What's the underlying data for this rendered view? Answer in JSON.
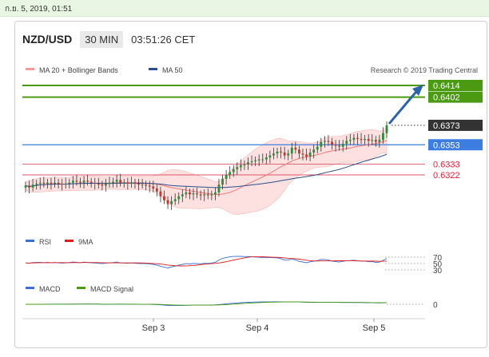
{
  "date_label": "ก.ย. 5, 2019, 01:51",
  "header": {
    "pair": "NZD/USD",
    "timeframe": "30 MIN",
    "time": "03:51:26 CET"
  },
  "legend": {
    "ma_label": "MA 20 + Bollinger Bands",
    "ma50_label": "MA 50",
    "credit": "Research © 2019 Trading Central"
  },
  "rsi_legend": {
    "rsi": "RSI",
    "ma": "9MA"
  },
  "macd_legend": {
    "macd": "MACD",
    "signal": "MACD Signal"
  },
  "colors": {
    "green": "#4a9a12",
    "blue": "#3b7de0",
    "red": "#e0566b",
    "dark": "#333333",
    "arrow": "#2c63a8"
  },
  "chart_data": {
    "type": "candlestick",
    "symbol": "NZD/USD",
    "timeframe": "30 MIN",
    "x_ticks": [
      "Sep 3",
      "Sep 4",
      "Sep 5"
    ],
    "ylim": [
      0.6285,
      0.6425
    ],
    "levels": [
      {
        "value": 0.6414,
        "label": "0.6414",
        "kind": "resistance"
      },
      {
        "value": 0.6402,
        "label": "0.6402",
        "kind": "resistance"
      },
      {
        "value": 0.6373,
        "label": "0.6373",
        "kind": "last"
      },
      {
        "value": 0.6353,
        "label": "0.6353",
        "kind": "pivot"
      },
      {
        "value": 0.6333,
        "label": "0.6333",
        "kind": "support"
      },
      {
        "value": 0.6322,
        "label": "0.6322",
        "kind": "support"
      }
    ],
    "close": [
      0.6311,
      0.6309,
      0.6312,
      0.6313,
      0.6314,
      0.6313,
      0.6314,
      0.6313,
      0.6314,
      0.6313,
      0.6312,
      0.6313,
      0.6314,
      0.6316,
      0.6315,
      0.6314,
      0.6316,
      0.6315,
      0.6314,
      0.6313,
      0.6312,
      0.6311,
      0.6313,
      0.6314,
      0.6315,
      0.6317,
      0.6314,
      0.6314,
      0.6313,
      0.6314,
      0.6313,
      0.6312,
      0.6312,
      0.6311,
      0.631,
      0.6308,
      0.6305,
      0.63,
      0.6296,
      0.6292,
      0.6295,
      0.6297,
      0.63,
      0.6302,
      0.6304,
      0.6302,
      0.6303,
      0.6302,
      0.6301,
      0.6302,
      0.6301,
      0.6302,
      0.6304,
      0.6312,
      0.6318,
      0.6322,
      0.6325,
      0.6328,
      0.633,
      0.6332,
      0.6333,
      0.6335,
      0.6336,
      0.6337,
      0.6338,
      0.6338,
      0.634,
      0.6342,
      0.6344,
      0.6346,
      0.6345,
      0.6342,
      0.6344,
      0.635,
      0.6348,
      0.6344,
      0.6343,
      0.6341,
      0.6345,
      0.6348,
      0.6351,
      0.6356,
      0.6357,
      0.6356,
      0.6353,
      0.6352,
      0.6351,
      0.6354,
      0.6357,
      0.6358,
      0.636,
      0.6359,
      0.6358,
      0.6359,
      0.6357,
      0.6358,
      0.6356,
      0.6358,
      0.6365,
      0.6373
    ],
    "indicators": [
      "MA 20 + Bollinger Bands",
      "MA 50",
      "RSI",
      "9MA",
      "MACD",
      "MACD Signal"
    ],
    "rsi_levels": [
      70,
      50,
      30
    ],
    "macd_zero": 0,
    "projection": {
      "from": 0.6373,
      "to": 0.6414
    }
  }
}
